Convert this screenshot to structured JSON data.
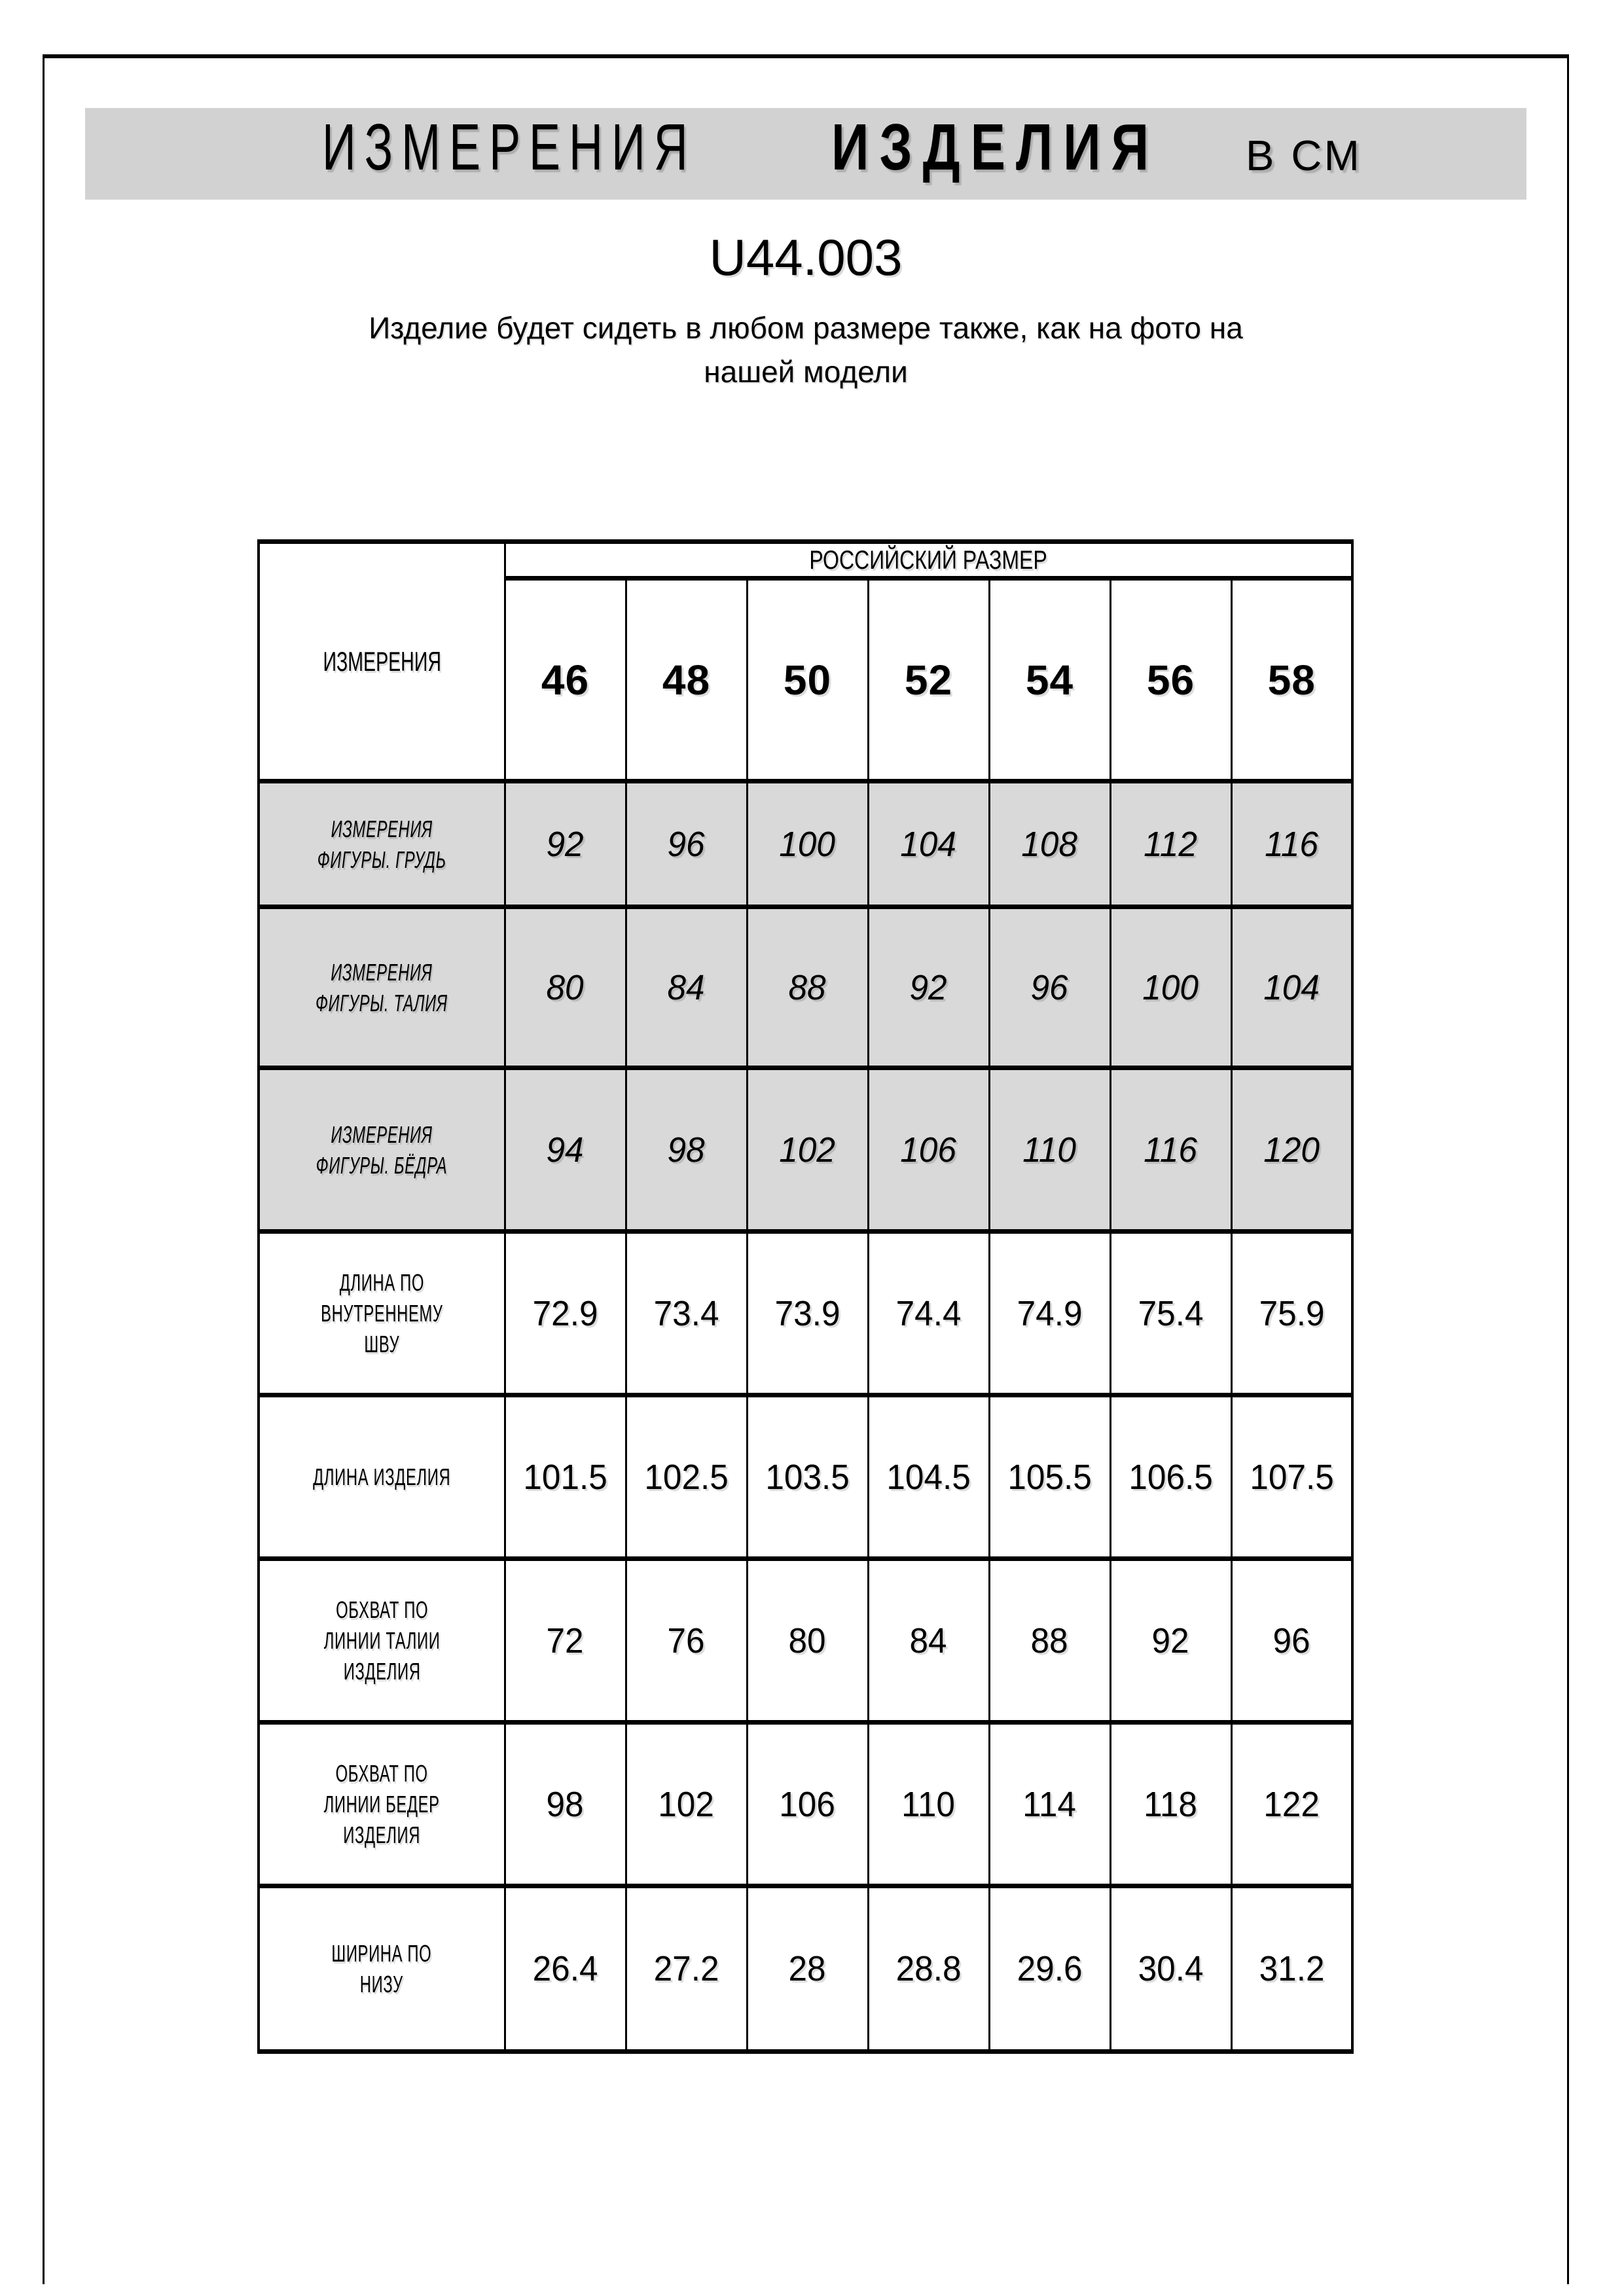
{
  "header": {
    "title_word1": "ИЗМЕРЕНИЯ",
    "title_word2": "ИЗДЕЛИЯ",
    "title_unit": "В СМ",
    "product_code": "U44.003",
    "note": "Изделие будет сидеть в любом размере также, как на фото на\nнашей модели"
  },
  "table": {
    "size_group_header": "РОССИЙСКИЙ РАЗМЕР",
    "measurements_header": "ИЗМЕРЕНИЯ",
    "sizes": [
      "46",
      "48",
      "50",
      "52",
      "54",
      "56",
      "58"
    ],
    "rows": [
      {
        "label": "ИЗМЕРЕНИЯ\nФИГУРЫ. ГРУДЬ",
        "shaded": true,
        "italic": true,
        "values": [
          "92",
          "96",
          "100",
          "104",
          "108",
          "112",
          "116"
        ]
      },
      {
        "label": "ИЗМЕРЕНИЯ\nФИГУРЫ. ТАЛИЯ",
        "shaded": true,
        "italic": true,
        "values": [
          "80",
          "84",
          "88",
          "92",
          "96",
          "100",
          "104"
        ]
      },
      {
        "label": "ИЗМЕРЕНИЯ\nФИГУРЫ. БЁДРА",
        "shaded": true,
        "italic": true,
        "values": [
          "94",
          "98",
          "102",
          "106",
          "110",
          "116",
          "120"
        ]
      },
      {
        "label": "ДЛИНА ПО\nВНУТРЕННЕМУ\nШВУ",
        "shaded": false,
        "italic": false,
        "values": [
          "72.9",
          "73.4",
          "73.9",
          "74.4",
          "74.9",
          "75.4",
          "75.9"
        ]
      },
      {
        "label": "ДЛИНА ИЗДЕЛИЯ",
        "shaded": false,
        "italic": false,
        "values": [
          "101.5",
          "102.5",
          "103.5",
          "104.5",
          "105.5",
          "106.5",
          "107.5"
        ]
      },
      {
        "label": "ОБХВАТ ПО\nЛИНИИ ТАЛИИ\nИЗДЕЛИЯ",
        "shaded": false,
        "italic": false,
        "values": [
          "72",
          "76",
          "80",
          "84",
          "88",
          "92",
          "96"
        ]
      },
      {
        "label": "ОБХВАТ ПО\nЛИНИИ БЕДЕР\nИЗДЕЛИЯ",
        "shaded": false,
        "italic": false,
        "values": [
          "98",
          "102",
          "106",
          "110",
          "114",
          "118",
          "122"
        ]
      },
      {
        "label": "ШИРИНА ПО\nНИЗУ",
        "shaded": false,
        "italic": false,
        "values": [
          "26.4",
          "27.2",
          "28",
          "28.8",
          "29.6",
          "30.4",
          "31.2"
        ]
      }
    ]
  },
  "colors": {
    "border": "#000000",
    "title_bar_bg": "#d2d2d2",
    "shaded_row_bg": "#d9d9d9",
    "page_bg": "#ffffff"
  }
}
